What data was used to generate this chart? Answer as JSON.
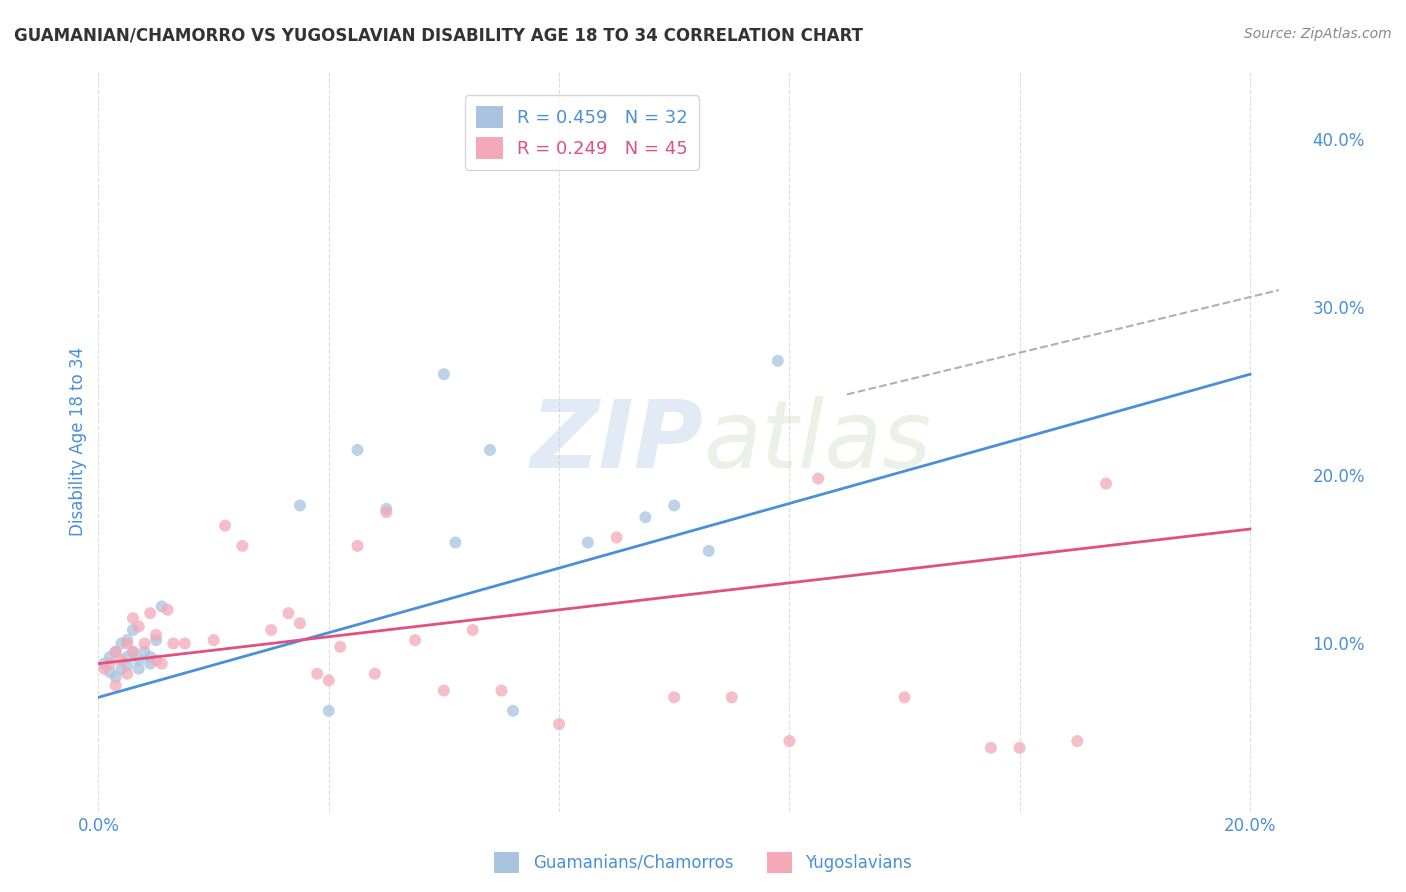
{
  "title": "GUAMANIAN/CHAMORRO VS YUGOSLAVIAN DISABILITY AGE 18 TO 34 CORRELATION CHART",
  "source": "Source: ZipAtlas.com",
  "xlabel": "",
  "ylabel": "Disability Age 18 to 34",
  "xlim": [
    0.0,
    0.21
  ],
  "ylim": [
    0.0,
    0.44
  ],
  "xticks": [
    0.0,
    0.04,
    0.08,
    0.12,
    0.16,
    0.2
  ],
  "xtick_labels": [
    "0.0%",
    "",
    "",
    "",
    "",
    "20.0%"
  ],
  "yticks": [
    0.0,
    0.1,
    0.2,
    0.3,
    0.4
  ],
  "ytick_labels": [
    "",
    "10.0%",
    "20.0%",
    "30.0%",
    "40.0%"
  ],
  "blue_R": 0.459,
  "blue_N": 32,
  "pink_R": 0.249,
  "pink_N": 45,
  "blue_color": "#a8c4e0",
  "pink_color": "#f4a8b8",
  "blue_line_color": "#4a90d9",
  "pink_line_color": "#e05080",
  "dash_line_color": "#b0b0b0",
  "background_color": "#ffffff",
  "grid_color": "#dddddd",
  "title_color": "#333333",
  "axis_label_color": "#4a90d9",
  "legend_text_color": "#4a90d9",
  "blue_scatter_x": [
    0.001,
    0.002,
    0.002,
    0.003,
    0.003,
    0.004,
    0.004,
    0.005,
    0.005,
    0.005,
    0.006,
    0.006,
    0.007,
    0.007,
    0.008,
    0.009,
    0.009,
    0.01,
    0.011,
    0.035,
    0.04,
    0.045,
    0.05,
    0.062,
    0.068,
    0.072,
    0.095,
    0.1,
    0.106,
    0.118,
    0.06,
    0.085
  ],
  "blue_scatter_y": [
    0.088,
    0.092,
    0.083,
    0.095,
    0.08,
    0.085,
    0.1,
    0.092,
    0.087,
    0.102,
    0.095,
    0.108,
    0.09,
    0.085,
    0.095,
    0.092,
    0.088,
    0.102,
    0.122,
    0.182,
    0.06,
    0.215,
    0.18,
    0.16,
    0.215,
    0.06,
    0.175,
    0.182,
    0.155,
    0.268,
    0.26,
    0.16
  ],
  "pink_scatter_x": [
    0.001,
    0.002,
    0.003,
    0.003,
    0.004,
    0.005,
    0.005,
    0.006,
    0.006,
    0.007,
    0.008,
    0.009,
    0.01,
    0.01,
    0.011,
    0.012,
    0.013,
    0.015,
    0.02,
    0.022,
    0.025,
    0.03,
    0.033,
    0.035,
    0.038,
    0.04,
    0.042,
    0.045,
    0.048,
    0.05,
    0.055,
    0.06,
    0.065,
    0.07,
    0.08,
    0.09,
    0.1,
    0.11,
    0.12,
    0.125,
    0.14,
    0.155,
    0.16,
    0.17,
    0.175
  ],
  "pink_scatter_y": [
    0.085,
    0.088,
    0.075,
    0.095,
    0.09,
    0.082,
    0.1,
    0.095,
    0.115,
    0.11,
    0.1,
    0.118,
    0.09,
    0.105,
    0.088,
    0.12,
    0.1,
    0.1,
    0.102,
    0.17,
    0.158,
    0.108,
    0.118,
    0.112,
    0.082,
    0.078,
    0.098,
    0.158,
    0.082,
    0.178,
    0.102,
    0.072,
    0.108,
    0.072,
    0.052,
    0.163,
    0.068,
    0.068,
    0.042,
    0.198,
    0.068,
    0.038,
    0.038,
    0.042,
    0.195
  ],
  "watermark_zip": "ZIP",
  "watermark_atlas": "atlas",
  "marker_size": 75,
  "marker_alpha": 0.75,
  "blue_trend_x": [
    0.0,
    0.2
  ],
  "blue_trend_y": [
    0.068,
    0.26
  ],
  "pink_trend_x": [
    0.0,
    0.2
  ],
  "pink_trend_y": [
    0.088,
    0.168
  ],
  "dash_trend_x": [
    0.13,
    0.205
  ],
  "dash_trend_y": [
    0.248,
    0.31
  ]
}
